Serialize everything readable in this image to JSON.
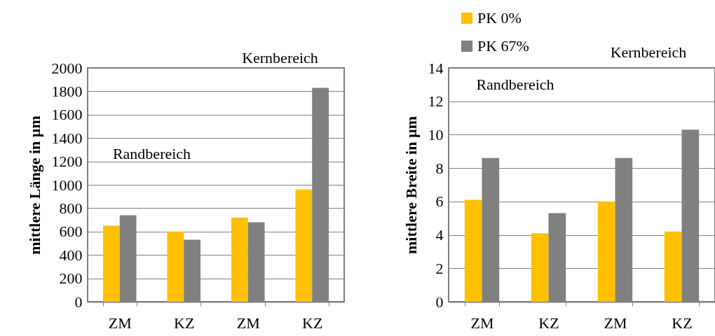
{
  "chart_data": [
    {
      "type": "bar",
      "ylabel": "mittlere Länge in µm",
      "categories": [
        "ZM",
        "KZ",
        "ZM",
        "KZ"
      ],
      "series": [
        {
          "color": "#ffc000",
          "values": [
            650,
            600,
            720,
            960
          ]
        },
        {
          "color": "#808080",
          "values": [
            740,
            530,
            680,
            1830
          ]
        }
      ],
      "ylim": [
        0,
        2000
      ],
      "yticks": [
        0,
        200,
        400,
        600,
        800,
        1000,
        1200,
        1400,
        1600,
        1800,
        2000
      ],
      "grid": "y",
      "legend": false,
      "annotations": [
        "Randbereich",
        "Kernbereich"
      ]
    },
    {
      "type": "bar",
      "ylabel": "mittlere Breite in µm",
      "categories": [
        "ZM",
        "KZ",
        "ZM",
        "KZ"
      ],
      "series": [
        {
          "name": "PK 0%",
          "color": "#ffc000",
          "values": [
            6.1,
            4.1,
            6.0,
            4.2
          ]
        },
        {
          "name": "PK 67%",
          "color": "#808080",
          "values": [
            8.6,
            5.3,
            8.6,
            10.3
          ]
        }
      ],
      "ylim": [
        0,
        14
      ],
      "yticks": [
        0,
        2,
        4,
        6,
        8,
        10,
        12,
        14
      ],
      "grid": "y",
      "legend": "top",
      "annotations": [
        "Randbereich",
        "Kernbereich"
      ]
    }
  ]
}
